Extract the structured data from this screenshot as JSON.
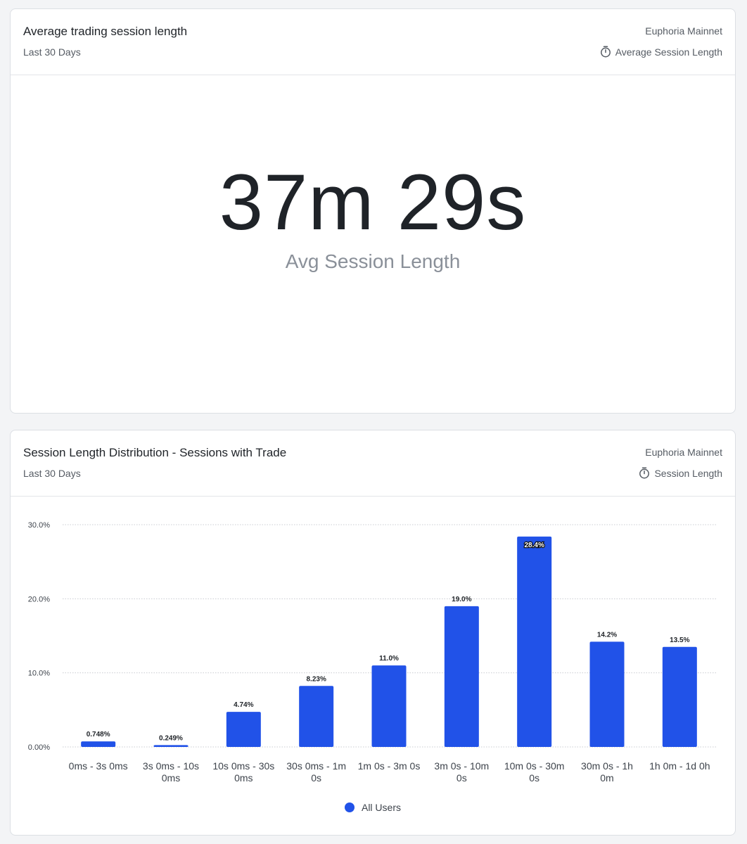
{
  "card1": {
    "title": "Average trading session length",
    "subtitle": "Last 30 Days",
    "network": "Euphoria Mainnet",
    "metric_label": "Average Session Length",
    "metric_icon": "stopwatch-icon",
    "value": "37m 29s",
    "value_label": "Avg Session Length"
  },
  "card2": {
    "title": "Session Length Distribution - Sessions with Trade",
    "subtitle": "Last 30 Days",
    "network": "Euphoria Mainnet",
    "metric_label": "Session Length",
    "metric_icon": "stopwatch-icon",
    "legend_label": "All Users"
  },
  "colors": {
    "bar": "#2152e8",
    "text_primary": "#1f2328",
    "text_muted": "#555b63"
  },
  "chart_data": {
    "type": "bar",
    "categories": [
      [
        "0ms - 3s 0ms"
      ],
      [
        "3s 0ms - 10s",
        "0ms"
      ],
      [
        "10s 0ms - 30s",
        "0ms"
      ],
      [
        "30s 0ms - 1m",
        "0s"
      ],
      [
        "1m 0s - 3m 0s"
      ],
      [
        "3m 0s - 10m",
        "0s"
      ],
      [
        "10m 0s - 30m",
        "0s"
      ],
      [
        "30m 0s - 1h",
        "0m"
      ],
      [
        "1h 0m - 1d 0h"
      ]
    ],
    "series": [
      {
        "name": "All Users",
        "values": [
          0.748,
          0.249,
          4.74,
          8.23,
          11.0,
          19.0,
          28.4,
          14.2,
          13.5
        ],
        "labels": [
          "0.748%",
          "0.249%",
          "4.74%",
          "8.23%",
          "11.0%",
          "19.0%",
          "28.4%",
          "14.2%",
          "13.5%"
        ]
      }
    ],
    "y_ticks": [
      0,
      10,
      20,
      30
    ],
    "y_tick_labels": [
      "0.00%",
      "10.0%",
      "20.0%",
      "30.0%"
    ],
    "ylim": [
      0,
      30
    ],
    "grid": true,
    "legend_position": "bottom-center"
  }
}
